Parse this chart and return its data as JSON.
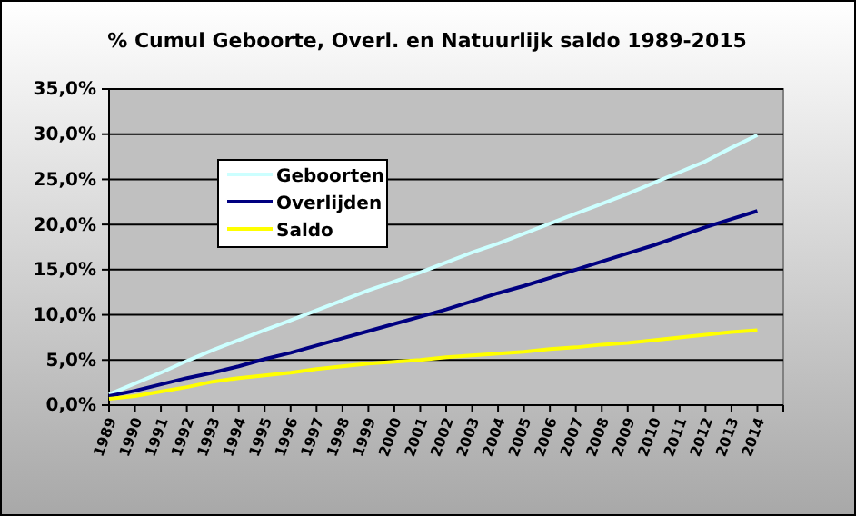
{
  "chart_data": {
    "type": "line",
    "title": "% Cumul Geboorte, Overl. en Natuurlijk saldo 1989-2015",
    "categories": [
      "1989",
      "1990",
      "1991",
      "1992",
      "1993",
      "1994",
      "1995",
      "1996",
      "1997",
      "1998",
      "1999",
      "2000",
      "2001",
      "2002",
      "2003",
      "2004",
      "2005",
      "2006",
      "2007",
      "2008",
      "2009",
      "2010",
      "2011",
      "2012",
      "2013",
      "2014"
    ],
    "series": [
      {
        "name": "Geboorten",
        "color": "#ccffff",
        "values": [
          1.2,
          2.4,
          3.6,
          4.9,
          6.1,
          7.2,
          8.3,
          9.4,
          10.5,
          11.6,
          12.7,
          13.7,
          14.7,
          15.8,
          16.9,
          17.9,
          19.0,
          20.1,
          21.2,
          22.3,
          23.4,
          24.6,
          25.8,
          27.0,
          28.5,
          29.9
        ]
      },
      {
        "name": "Overlijden",
        "color": "#000080",
        "values": [
          1.0,
          1.6,
          2.3,
          3.0,
          3.6,
          4.3,
          5.1,
          5.8,
          6.6,
          7.4,
          8.2,
          9.0,
          9.8,
          10.6,
          11.5,
          12.4,
          13.2,
          14.1,
          15.0,
          15.9,
          16.8,
          17.7,
          18.7,
          19.7,
          20.6,
          21.5
        ]
      },
      {
        "name": "Saldo",
        "color": "#ffff00",
        "values": [
          0.7,
          1.0,
          1.5,
          2.0,
          2.6,
          3.0,
          3.3,
          3.6,
          4.0,
          4.3,
          4.6,
          4.8,
          5.0,
          5.3,
          5.5,
          5.7,
          5.9,
          6.2,
          6.4,
          6.7,
          6.9,
          7.2,
          7.5,
          7.8,
          8.1,
          8.3
        ]
      }
    ],
    "ylim": [
      0,
      35
    ],
    "yticks": [
      {
        "value": 0,
        "label": "0,0%"
      },
      {
        "value": 5,
        "label": "5,0%"
      },
      {
        "value": 10,
        "label": "10,0%"
      },
      {
        "value": 15,
        "label": "15,0%"
      },
      {
        "value": 20,
        "label": "20,0%"
      },
      {
        "value": 25,
        "label": "25,0%"
      },
      {
        "value": 30,
        "label": "30,0%"
      },
      {
        "value": 35,
        "label": "35,0%"
      }
    ],
    "grid": "y",
    "legend": "top left",
    "marker": "none",
    "line_style": "solid"
  }
}
